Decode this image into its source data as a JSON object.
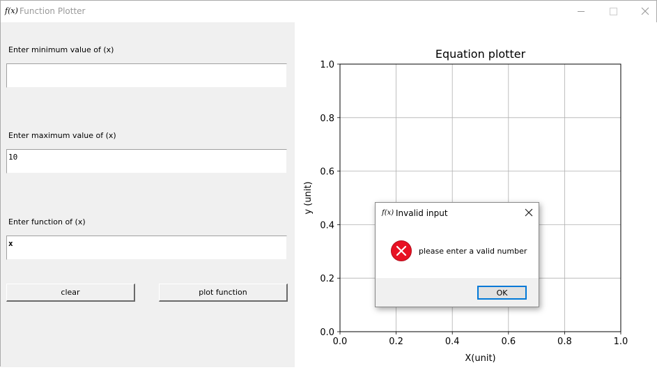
{
  "window": {
    "icon_text": "f(x)",
    "title": "Function Plotter",
    "minimize_icon": "minimize-icon",
    "maximize_icon": "maximize-icon",
    "close_icon": "close-icon"
  },
  "form": {
    "min_label": "Enter minimum value of (x)",
    "min_value": "",
    "max_label": "Enter maximum value of (x)",
    "max_value": "10",
    "func_label": "Enter function of (x)",
    "func_value": "x",
    "clear_label": "clear",
    "plot_label": "plot function"
  },
  "chart_data": {
    "type": "line",
    "title": "Equation plotter",
    "xlabel": "X(unit)",
    "ylabel": "y (unit)",
    "xlim": [
      0.0,
      1.0
    ],
    "ylim": [
      0.0,
      1.0
    ],
    "xticks": [
      "0.0",
      "0.2",
      "0.4",
      "0.6",
      "0.8",
      "1.0"
    ],
    "yticks": [
      "0.0",
      "0.2",
      "0.4",
      "0.6",
      "0.8",
      "1.0"
    ],
    "grid": true,
    "series": []
  },
  "dialog": {
    "icon_text": "f(x)",
    "title": "Invalid input",
    "message": "please enter a valid number",
    "ok_label": "OK",
    "error_icon": "error-icon",
    "error_color": "#e81123",
    "focus_color": "#0078d7"
  }
}
